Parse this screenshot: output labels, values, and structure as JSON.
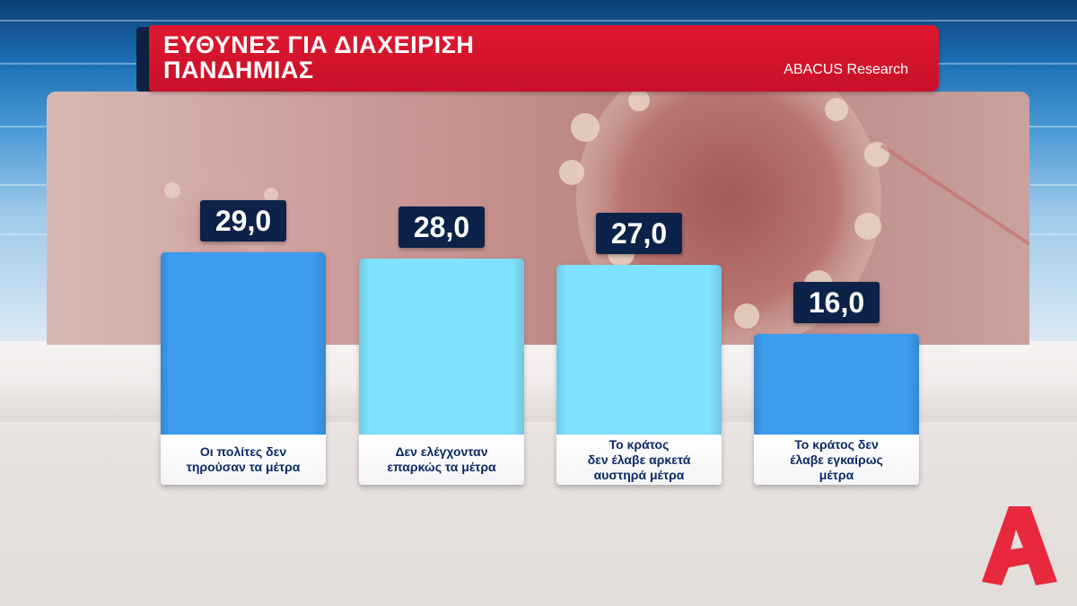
{
  "header": {
    "title": "ΕΥΘΥΝΕΣ ΓΙΑ ΔΙΑΧΕΙΡΙΣΗ\nΠΑΝΔΗΜΙΑΣ",
    "source": "ABACUS Research"
  },
  "colors": {
    "banner_red": "#d4142c",
    "badge_navy": "#0c2248",
    "label_navy": "#0d2a66",
    "bar_dark_blue": "#3d9cf0",
    "bar_light_cyan": "#7fe3ff",
    "logo_red": "#e8283c"
  },
  "logo": {
    "icon": "alpha-tv-logo-icon"
  },
  "chart_data": {
    "type": "bar",
    "categories": [
      "Οι πολίτες δεν\nτηρούσαν τα μέτρα",
      "Δεν ελέγχονταν\nεπαρκώς τα μέτρα",
      "Το κράτος\nδεν έλαβε αρκετά\nαυστηρά μέτρα",
      "Το κράτος δεν\nέλαβε εγκαίρως\nμέτρα"
    ],
    "values": [
      29.0,
      28.0,
      27.0,
      16.0
    ],
    "value_labels": [
      "29,0",
      "28,0",
      "27,0",
      "16,0"
    ],
    "bar_colors": [
      "#3d9cf0",
      "#7fe3ff",
      "#7fe3ff",
      "#3d9cf0"
    ],
    "title": "ΕΥΘΥΝΕΣ ΓΙΑ ΔΙΑΧΕΙΡΙΣΗ ΠΑΝΔΗΜΙΑΣ",
    "xlabel": "",
    "ylabel": "",
    "grid": false
  }
}
